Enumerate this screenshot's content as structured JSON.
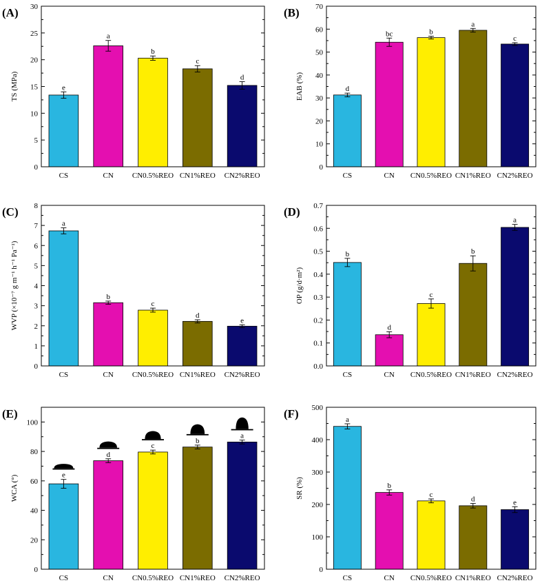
{
  "figure": {
    "colors": [
      "#29b6e0",
      "#e40fb0",
      "#ffee00",
      "#7b6c00",
      "#0a0a6e"
    ]
  },
  "chart_data": [
    {
      "panel": "(A)",
      "type": "bar",
      "ylabel": "TS (MPa)",
      "categories": [
        "CS",
        "CN",
        "CN0.5%REO",
        "CN1%REO",
        "CN2%REO"
      ],
      "values": [
        13.4,
        22.6,
        20.3,
        18.3,
        15.2
      ],
      "errors": [
        0.6,
        1.0,
        0.4,
        0.6,
        0.7
      ],
      "letters": [
        "e",
        "a",
        "b",
        "c",
        "d"
      ],
      "ylim": [
        0,
        30
      ],
      "yticks": [
        0,
        5,
        10,
        15,
        20,
        25,
        30
      ]
    },
    {
      "panel": "(B)",
      "type": "bar",
      "ylabel": "EAB (%)",
      "categories": [
        "CS",
        "CN",
        "CN0.5%REO",
        "CN1%REO",
        "CN2%REO"
      ],
      "values": [
        31.3,
        54.3,
        56.3,
        59.5,
        53.5
      ],
      "errors": [
        0.8,
        1.8,
        0.6,
        0.8,
        0.6
      ],
      "letters": [
        "d",
        "bc",
        "b",
        "a",
        "c"
      ],
      "ylim": [
        0,
        70
      ],
      "yticks": [
        0,
        10,
        20,
        30,
        40,
        50,
        60,
        70
      ]
    },
    {
      "panel": "(C)",
      "type": "bar",
      "ylabel": "WVP (×10⁻⁷ g m⁻¹ h⁻¹ Pa⁻¹)",
      "categories": [
        "CS",
        "CN",
        "CN0.5%REO",
        "CN1%REO",
        "CN2%REO"
      ],
      "values": [
        6.73,
        3.15,
        2.78,
        2.22,
        1.98
      ],
      "errors": [
        0.15,
        0.08,
        0.1,
        0.08,
        0.07
      ],
      "letters": [
        "a",
        "b",
        "c",
        "d",
        "e"
      ],
      "ylim": [
        0,
        8
      ],
      "yticks": [
        0,
        1,
        2,
        3,
        4,
        5,
        6,
        7,
        8
      ]
    },
    {
      "panel": "(D)",
      "type": "bar",
      "ylabel": "OP (g/d·m²)",
      "categories": [
        "CS",
        "CN",
        "CN0.5%REO",
        "CN1%REO",
        "CN2%REO"
      ],
      "values": [
        0.451,
        0.136,
        0.272,
        0.447,
        0.604
      ],
      "errors": [
        0.018,
        0.013,
        0.02,
        0.033,
        0.013
      ],
      "letters": [
        "b",
        "d",
        "c",
        "b",
        "a"
      ],
      "ylim": [
        0,
        0.7
      ],
      "yticks": [
        0.0,
        0.1,
        0.2,
        0.3,
        0.4,
        0.5,
        0.6,
        0.7
      ],
      "tick_decimals": 1
    },
    {
      "panel": "(E)",
      "type": "bar",
      "ylabel": "WCA (°)",
      "categories": [
        "CS",
        "CN",
        "CN0.5%REO",
        "CN1%REO",
        "CN2%REO"
      ],
      "values": [
        58.0,
        73.7,
        79.6,
        83.0,
        86.4
      ],
      "errors": [
        3.0,
        1.3,
        1.3,
        1.3,
        1.3
      ],
      "letters": [
        "e",
        "d",
        "c",
        "b",
        "a"
      ],
      "ylim": [
        0,
        110
      ],
      "yticks": [
        0,
        20,
        40,
        60,
        80,
        100
      ],
      "droplets": true
    },
    {
      "panel": "(F)",
      "type": "bar",
      "ylabel": "SR (%)",
      "categories": [
        "CS",
        "CN",
        "CN0.5%REO",
        "CN1%REO",
        "CN2%REO"
      ],
      "values": [
        441,
        237,
        211,
        196,
        184
      ],
      "errors": [
        8,
        8,
        6,
        7,
        9
      ],
      "letters": [
        "a",
        "b",
        "c",
        "d",
        "e"
      ],
      "ylim": [
        0,
        500
      ],
      "yticks": [
        0,
        100,
        200,
        300,
        400,
        500
      ]
    }
  ]
}
